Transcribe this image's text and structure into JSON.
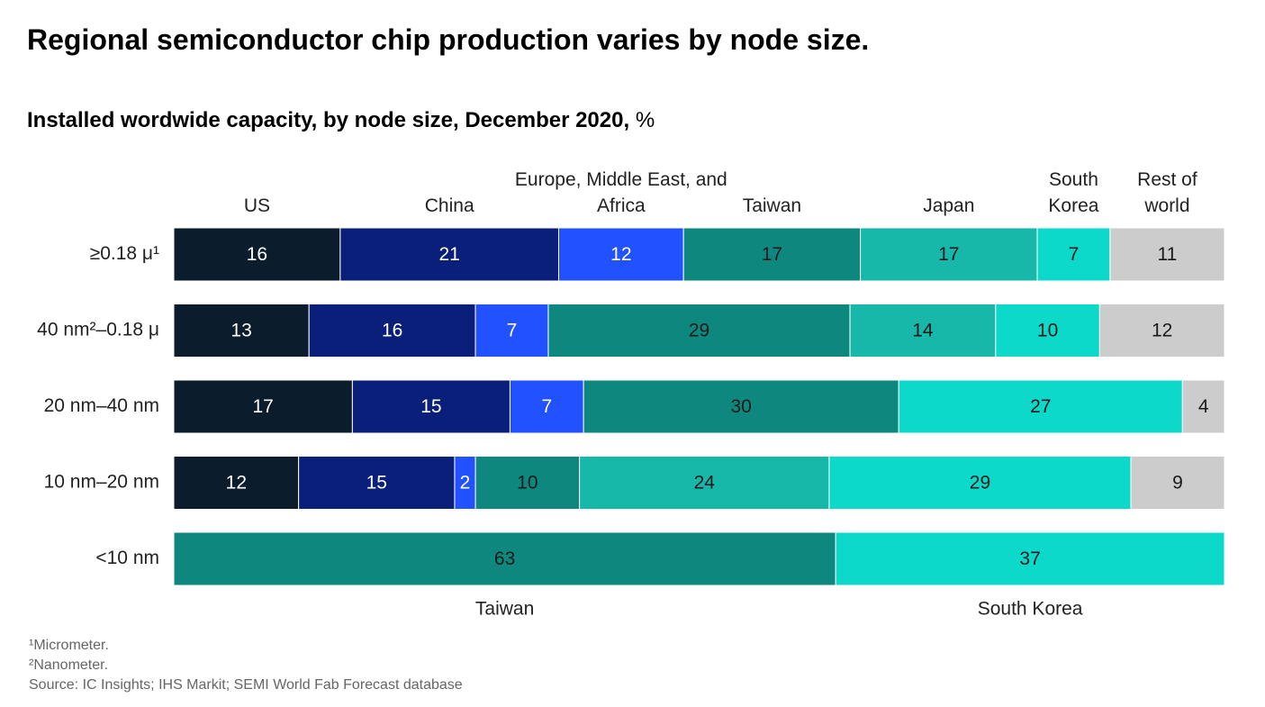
{
  "chart_data": {
    "type": "stacked-bar-horizontal-100",
    "title": "Regional semiconductor chip production varies by node size.",
    "subtitle": "Installed wordwide capacity, by node size, December 2020,",
    "unit": "%",
    "categories": [
      "≥0.18 μ¹",
      "40 nm²–0.18 μ",
      "20 nm–40 nm",
      "10 nm–20 nm",
      "<10 nm"
    ],
    "series": [
      {
        "name": "US",
        "color": "#0b1c2c",
        "text_color": "#ffffff",
        "values": [
          16,
          13,
          17,
          12,
          null
        ]
      },
      {
        "name": "China",
        "color": "#0a1f7a",
        "text_color": "#ffffff",
        "values": [
          21,
          16,
          15,
          15,
          null
        ]
      },
      {
        "name": "Europe, Middle East, and Africa",
        "color": "#2251ff",
        "text_color": "#ffffff",
        "values": [
          12,
          7,
          7,
          2,
          null
        ]
      },
      {
        "name": "Taiwan",
        "color": "#0e887e",
        "text_color": "#1a1a1a",
        "values": [
          17,
          29,
          30,
          10,
          63
        ]
      },
      {
        "name": "Japan",
        "color": "#17b7a9",
        "text_color": "#1a1a1a",
        "values": [
          17,
          14,
          null,
          24,
          null
        ]
      },
      {
        "name": "South Korea",
        "color": "#0dd9cb",
        "text_color": "#1a1a1a",
        "values": [
          7,
          10,
          27,
          29,
          37
        ]
      },
      {
        "name": "Rest of world",
        "color": "#cccccc",
        "text_color": "#1a1a1a",
        "values": [
          11,
          12,
          4,
          9,
          null
        ]
      }
    ],
    "footnotes": [
      "¹Micrometer.",
      "²Nanometer.",
      "Source: IC Insights; IHS Markit; SEMI World Fab Forecast database"
    ]
  }
}
